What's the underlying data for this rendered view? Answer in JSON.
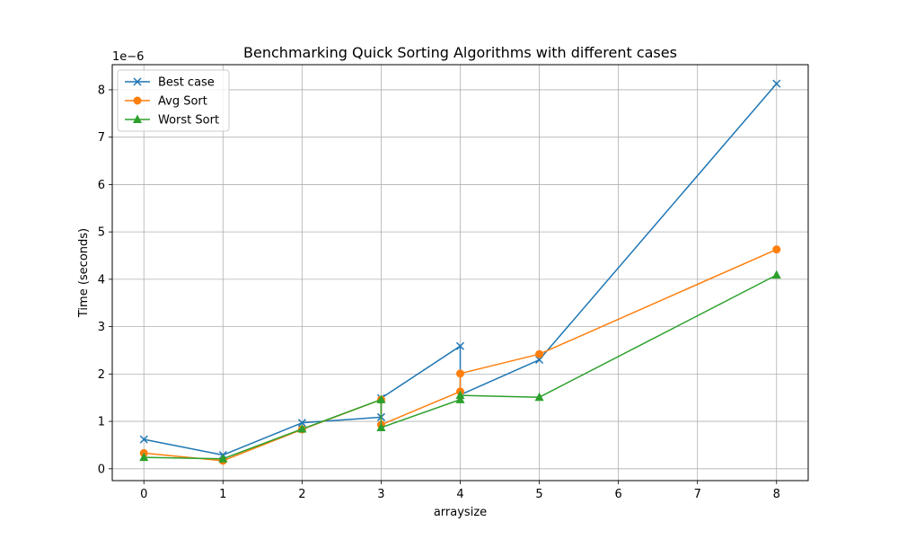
{
  "chart_data": {
    "type": "line",
    "title": "Benchmarking  Quick Sorting Algorithms with different cases",
    "xlabel": "arraysize",
    "ylabel": "Time (seconds)",
    "y_offset_label": "1e−6",
    "xlim": [
      -0.4,
      8.4
    ],
    "ylim": [
      -0.25,
      8.53
    ],
    "x_ticks": [
      0,
      1,
      2,
      3,
      4,
      5,
      6,
      7,
      8
    ],
    "y_ticks": [
      0,
      1,
      2,
      3,
      4,
      5,
      6,
      7,
      8
    ],
    "grid": true,
    "legend_position": "upper-left",
    "series": [
      {
        "name": "Best case",
        "color": "#1f77b4",
        "marker": "x",
        "x": [
          0,
          1,
          2,
          3,
          3,
          4,
          4,
          5,
          8
        ],
        "y": [
          0.62,
          0.29,
          0.97,
          1.09,
          1.49,
          2.59,
          1.56,
          2.3,
          8.13
        ]
      },
      {
        "name": "Avg Sort",
        "color": "#ff7f0e",
        "marker": "o",
        "x": [
          0,
          1,
          2,
          3,
          3,
          4,
          4,
          5,
          8
        ],
        "y": [
          0.33,
          0.17,
          0.83,
          1.46,
          0.93,
          1.63,
          2.01,
          2.42,
          4.63
        ]
      },
      {
        "name": "Worst Sort",
        "color": "#2ca02c",
        "marker": "^",
        "x": [
          0,
          1,
          2,
          3,
          3,
          4,
          4,
          5,
          8
        ],
        "y": [
          0.24,
          0.21,
          0.84,
          1.46,
          0.87,
          1.46,
          1.55,
          1.51,
          4.09
        ]
      }
    ]
  }
}
